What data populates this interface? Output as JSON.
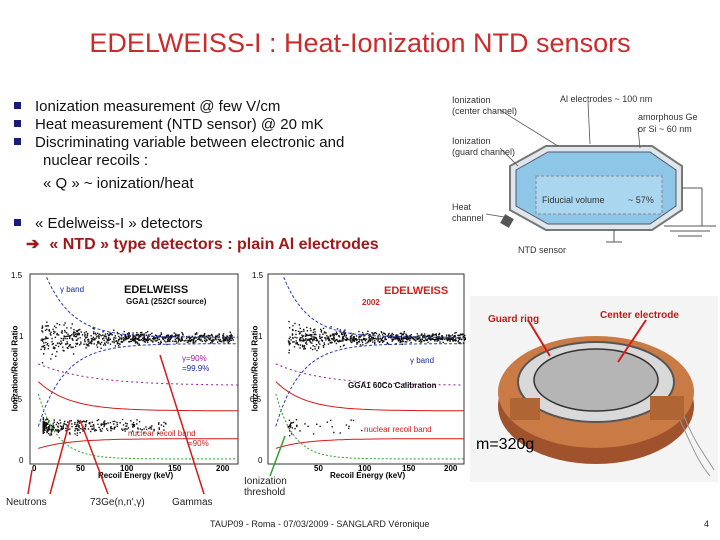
{
  "title": "EDELWEISS-I : Heat-Ionization NTD sensors",
  "bullets": [
    "Ionization measurement @ few V/cm",
    "Heat measurement (NTD sensor) @ 20 mK",
    "Discriminating variable between electronic and",
    "« Edelweiss-I » detectors"
  ],
  "bullet3_cont1": "nuclear recoils :",
  "bullet3_cont2": "« Q » ~ ionization/heat",
  "ntd_line": "« NTD » type detectors : plain Al electrodes",
  "diagram": {
    "ion_center": "Ionization",
    "ion_center2": "(center channel)",
    "ion_guard": "Ionization",
    "ion_guard2": "(guard channel)",
    "al": "Al electrodes ~ 100 nm",
    "amorph1": "amorphous Ge",
    "amorph2": "or Si ~ 60 nm",
    "heat1": "Heat",
    "heat2": "channel",
    "fiducial": "Fiducial volume",
    "percent": "~ 57%",
    "ntd": "NTD sensor"
  },
  "plot1": {
    "ylabel": "Ionization/Recoil Ratio",
    "xlabel": "Recoil Energy (keV)",
    "brand": "EDELWEISS",
    "ga": "GGA1 (252Cf source)",
    "gband": "γ band",
    "band90": "γ=90%",
    "band99": "=99.9%",
    "nrband": "nuclear recoil band",
    "nr90": "=90%",
    "yticks": [
      "1.5",
      "1",
      "0.5",
      "0"
    ],
    "xticks": [
      "0",
      "50",
      "100",
      "150",
      "200"
    ]
  },
  "plot2": {
    "ylabel": "Ionization/Recoil Ratio",
    "xlabel": "Recoil Energy (keV)",
    "brand": "EDELWEISS",
    "year": "2002",
    "gband": "γ band",
    "ga": "GGA1 60Co Calibration",
    "nrband": "nuclear recoil band",
    "yticks": [
      "1.5",
      "1",
      "0.5",
      "0"
    ],
    "xticks": [
      "50",
      "100",
      "150",
      "200"
    ]
  },
  "photo": {
    "guard": "Guard ring",
    "center": "Center electrode",
    "mass": "m=320g"
  },
  "captions": {
    "neutrons": "Neutrons",
    "ge": "73Ge(n,n',γ)",
    "gammas": "Gammas",
    "ion1": "Ionization",
    "ion2": "threshold"
  },
  "footer": "TAUP09 - Roma - 07/03/2009 - SANGLARD Véronique",
  "page": "4",
  "colors": {
    "title": "#cc2b2b",
    "accent": "#a01818",
    "bullet": "#1a1a7a"
  }
}
